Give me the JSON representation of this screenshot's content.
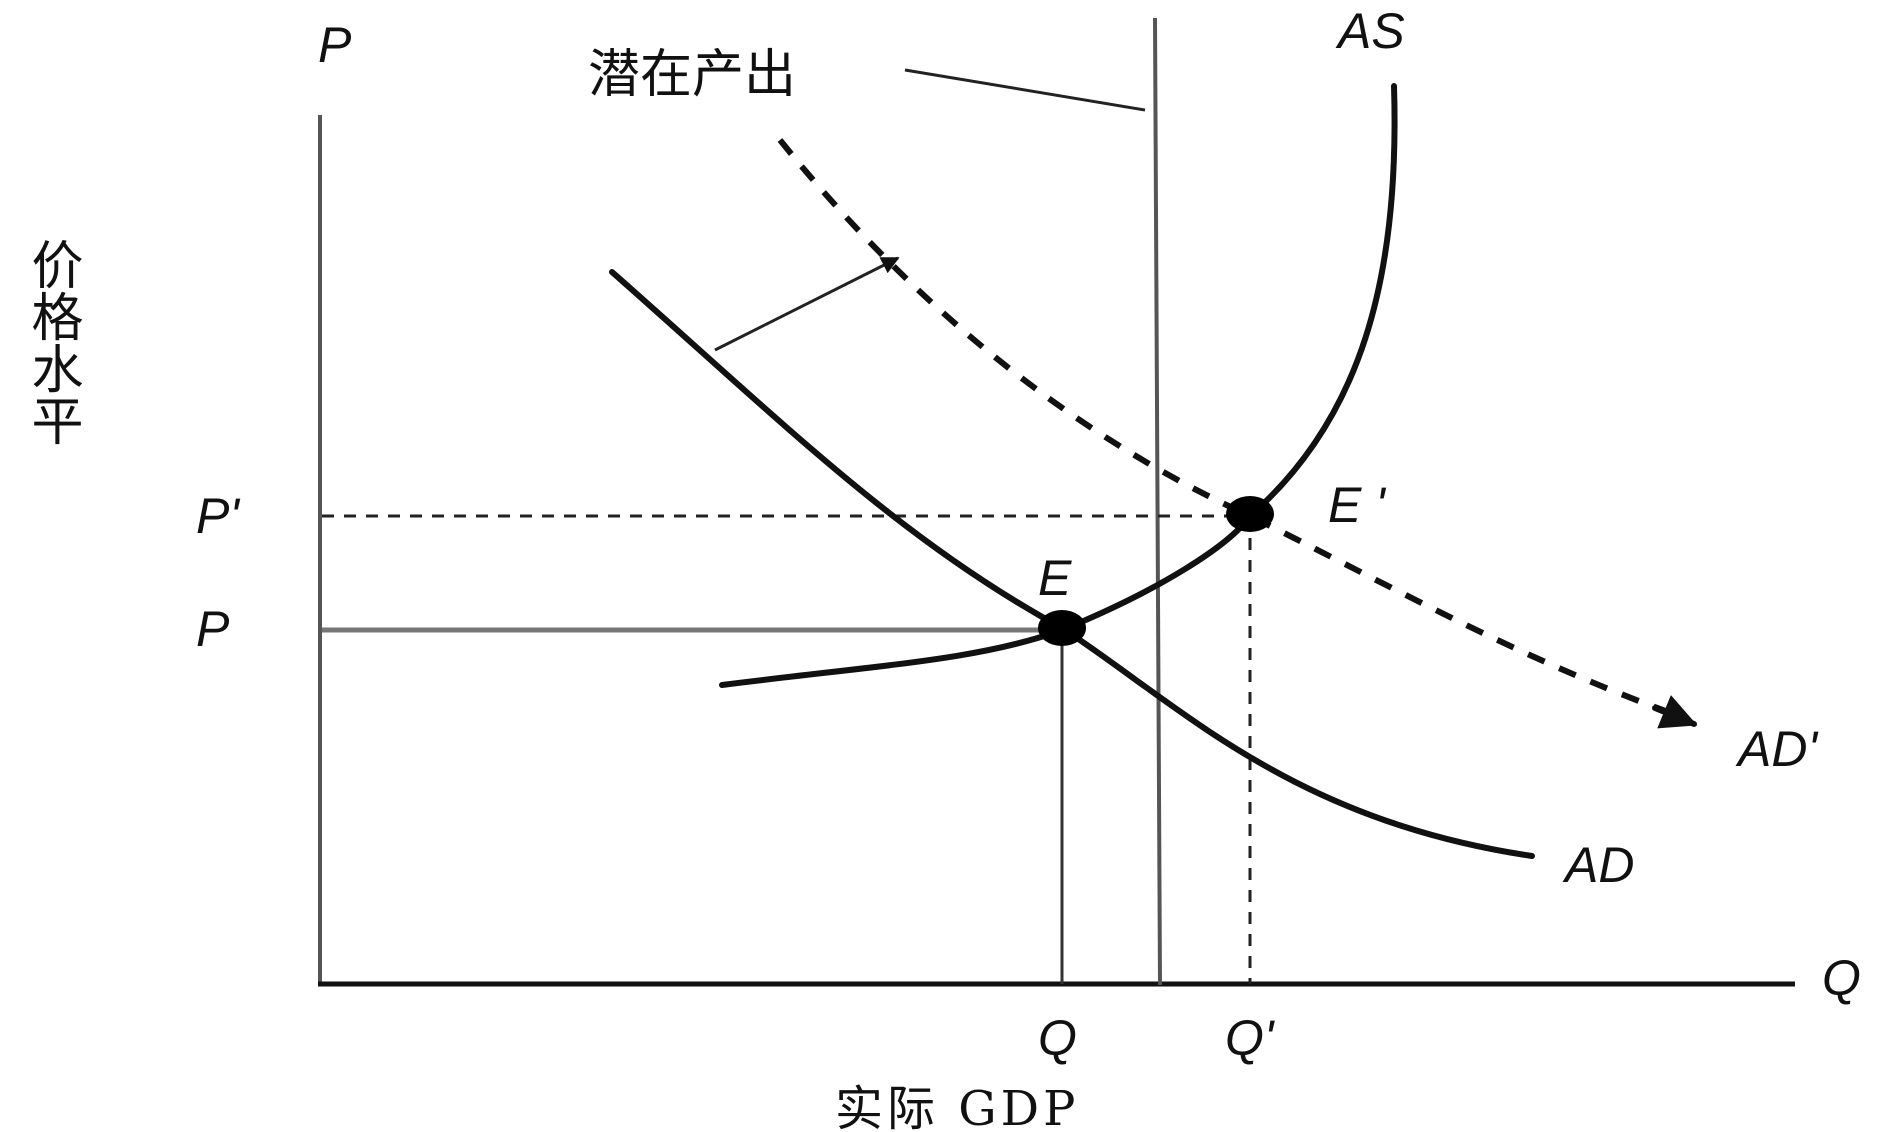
{
  "axes": {
    "y_axis_label": "P",
    "x_axis_label": "Q",
    "y_axis_title": "价格水平",
    "x_axis_title": "实际 GDP"
  },
  "curves": {
    "aggregate_supply": "AS",
    "aggregate_demand": "AD",
    "aggregate_demand_shifted": "AD'",
    "potential_output": "潜在产出"
  },
  "equilibria": {
    "initial": {
      "label": "E",
      "price_label": "P",
      "quantity_label": "Q"
    },
    "new": {
      "label": "E '",
      "price_label": "P'",
      "quantity_label": "Q'"
    }
  }
}
